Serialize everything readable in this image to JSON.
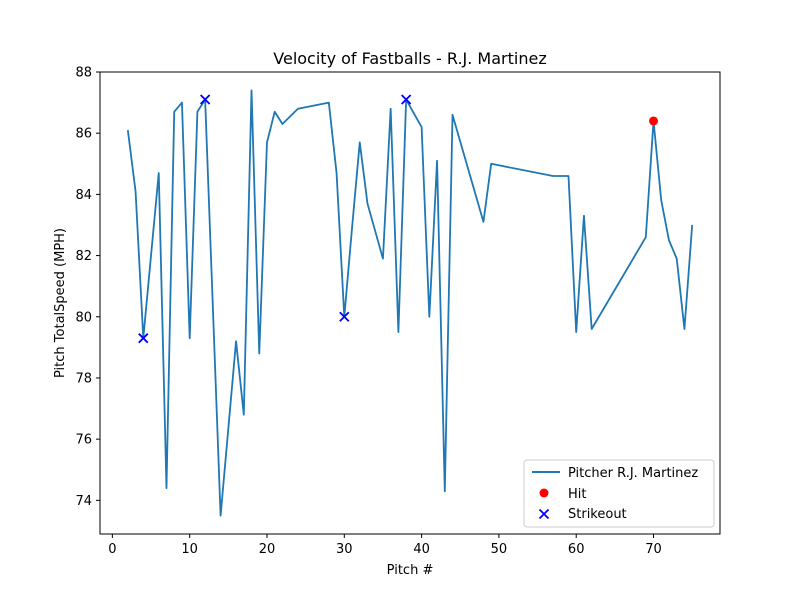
{
  "chart_data": {
    "type": "line",
    "title": "Velocity of Fastballs - R.J. Martinez",
    "xlabel": "Pitch #",
    "ylabel": "Pitch TotalSpeed (MPH)",
    "xlim": [
      -1.6,
      78.6
    ],
    "ylim": [
      72.9,
      88.0
    ],
    "xticks": [
      0,
      10,
      20,
      30,
      40,
      50,
      60,
      70
    ],
    "yticks": [
      74,
      76,
      78,
      80,
      82,
      84,
      86,
      88
    ],
    "grid": false,
    "legend_position": "lower right",
    "series": [
      {
        "name": "Pitcher R.J. Martinez",
        "kind": "line",
        "color": "#1f77b4",
        "x": [
          2,
          3,
          4,
          6,
          7,
          8,
          9,
          10,
          11,
          12,
          14,
          16,
          17,
          18,
          19,
          20,
          21,
          22,
          24,
          28,
          29,
          30,
          31,
          32,
          33,
          35,
          36,
          37,
          38,
          40,
          41,
          42,
          43,
          44,
          48,
          49,
          57,
          59,
          60,
          61,
          62,
          69,
          70,
          71,
          72,
          73,
          74,
          75
        ],
        "y": [
          86.1,
          84.1,
          79.3,
          84.7,
          74.4,
          86.7,
          87.0,
          79.3,
          86.7,
          87.1,
          73.5,
          79.2,
          76.8,
          87.4,
          78.8,
          85.7,
          86.7,
          86.3,
          86.8,
          87.0,
          84.7,
          80.0,
          82.9,
          85.7,
          83.7,
          81.9,
          86.8,
          79.5,
          87.1,
          86.2,
          80.0,
          85.1,
          74.3,
          86.6,
          83.1,
          85.0,
          84.6,
          84.6,
          79.5,
          83.3,
          79.6,
          82.6,
          86.4,
          83.8,
          82.5,
          81.9,
          79.6,
          83.0
        ]
      },
      {
        "name": "Hit",
        "kind": "scatter",
        "marker": "circle",
        "color": "#ff0000",
        "x": [
          70
        ],
        "y": [
          86.4
        ]
      },
      {
        "name": "Strikeout",
        "kind": "scatter",
        "marker": "x",
        "color": "#0000ff",
        "x": [
          4,
          12,
          30,
          38
        ],
        "y": [
          79.3,
          87.1,
          80.0,
          87.1
        ]
      }
    ]
  }
}
